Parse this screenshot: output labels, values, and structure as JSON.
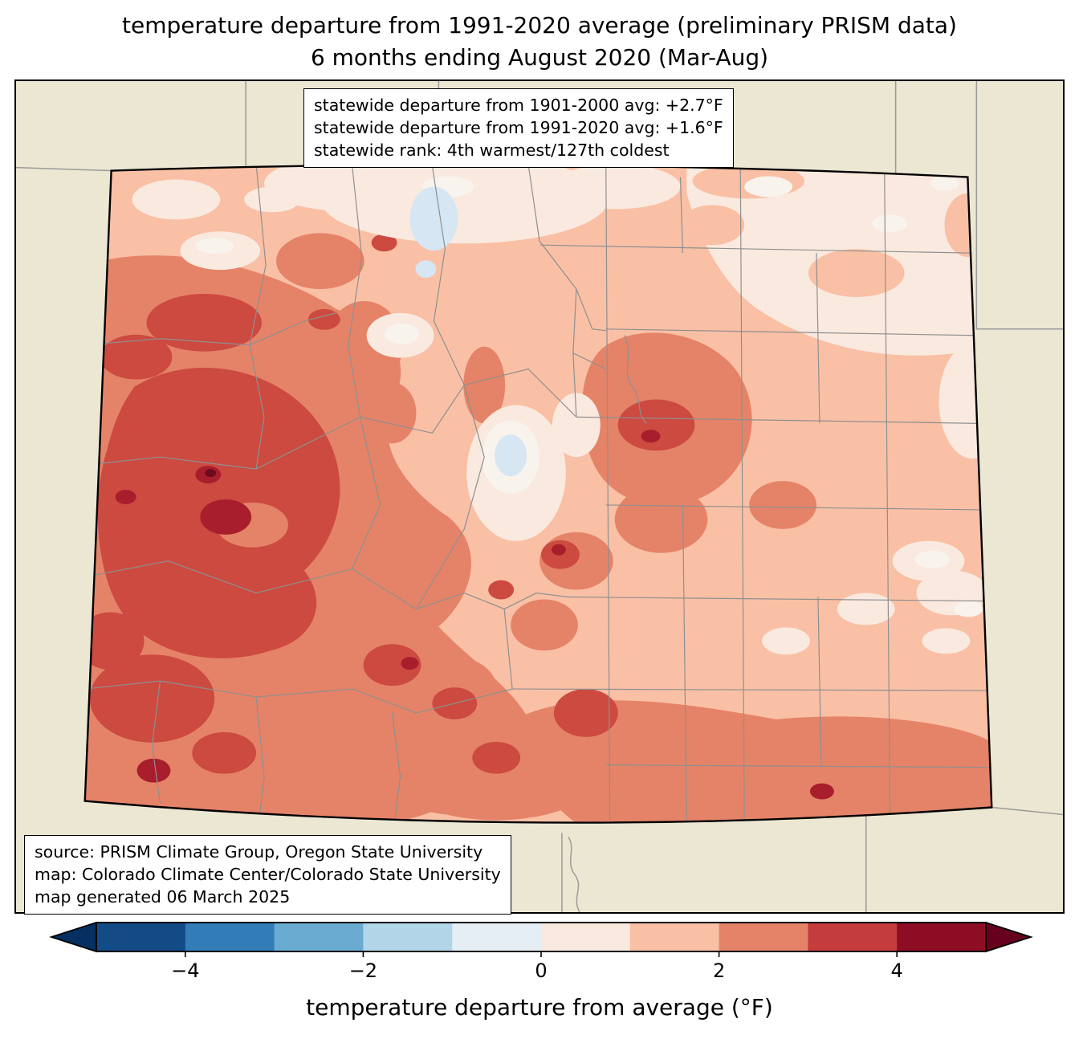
{
  "title": {
    "line1": "temperature departure from 1991-2020 average (preliminary PRISM data)",
    "line2": "6 months ending August 2020 (Mar-Aug)"
  },
  "stats_box": {
    "line1": "statewide departure from 1901-2000 avg: +2.7°F",
    "line2": "statewide departure from 1991-2020 avg: +1.6°F",
    "line3": "statewide rank: 4th warmest/127th coldest"
  },
  "source_box": {
    "line1": "source: PRISM Climate Group, Oregon State University",
    "line2": "map: Colorado Climate Center/Colorado State University",
    "line3": "map generated 06 March 2025"
  },
  "colorbar": {
    "label": "temperature departure from average (°F)",
    "range": [
      -5,
      5
    ],
    "ticks": [
      {
        "value": -4,
        "label": "−4"
      },
      {
        "value": -2,
        "label": "−2"
      },
      {
        "value": 0,
        "label": "0"
      },
      {
        "value": 2,
        "label": "2"
      },
      {
        "value": 4,
        "label": "4"
      }
    ],
    "segment_colors": [
      "#134b86",
      "#327db8",
      "#6aacd1",
      "#b2d5e7",
      "#e4eef4",
      "#fae9df",
      "#f9c0a5",
      "#e58368",
      "#c43c3c",
      "#8d0d25"
    ],
    "under_color": "#053061",
    "over_color": "#67001f"
  },
  "map": {
    "background_color": "#ebe7d2",
    "state_border_color": "#000000",
    "county_line_color": "#8f8f8f",
    "palette": {
      "base": "#f9c0a5",
      "pale": "#fae9df",
      "near_zero": "#f8f3ed",
      "lake_blue": "#d6e6f2",
      "medium": "#e58368",
      "dark": "#cc4a40",
      "spot": "#a81e2c",
      "core": "#6e0a1e"
    }
  },
  "chart_data": {
    "type": "heatmap",
    "region": "Colorado",
    "title": "temperature departure from 1991-2020 average (preliminary PRISM data)",
    "subtitle": "6 months ending August 2020 (Mar-Aug)",
    "statewide_departure_from_1901_2000_avg_F": 2.7,
    "statewide_departure_from_1991_2020_avg_F": 1.6,
    "statewide_rank": "4th warmest/127th coldest",
    "colorbar_label": "temperature departure from average (°F)",
    "colorbar_ticks": [
      -4,
      -2,
      0,
      2,
      4
    ],
    "colorbar_range_F": [
      -5,
      5
    ],
    "colorbar_bin_size_F": 1,
    "legend_position": "bottom",
    "dominant_anomaly_F": "+1 to +3 statewide, locally +3 to +5 in west/southwest, small near-0 and slightly negative pockets in north-center and central mountains",
    "source": "PRISM Climate Group, Oregon State University",
    "map_credit": "Colorado Climate Center/Colorado State University",
    "map_generated": "06 March 2025"
  }
}
